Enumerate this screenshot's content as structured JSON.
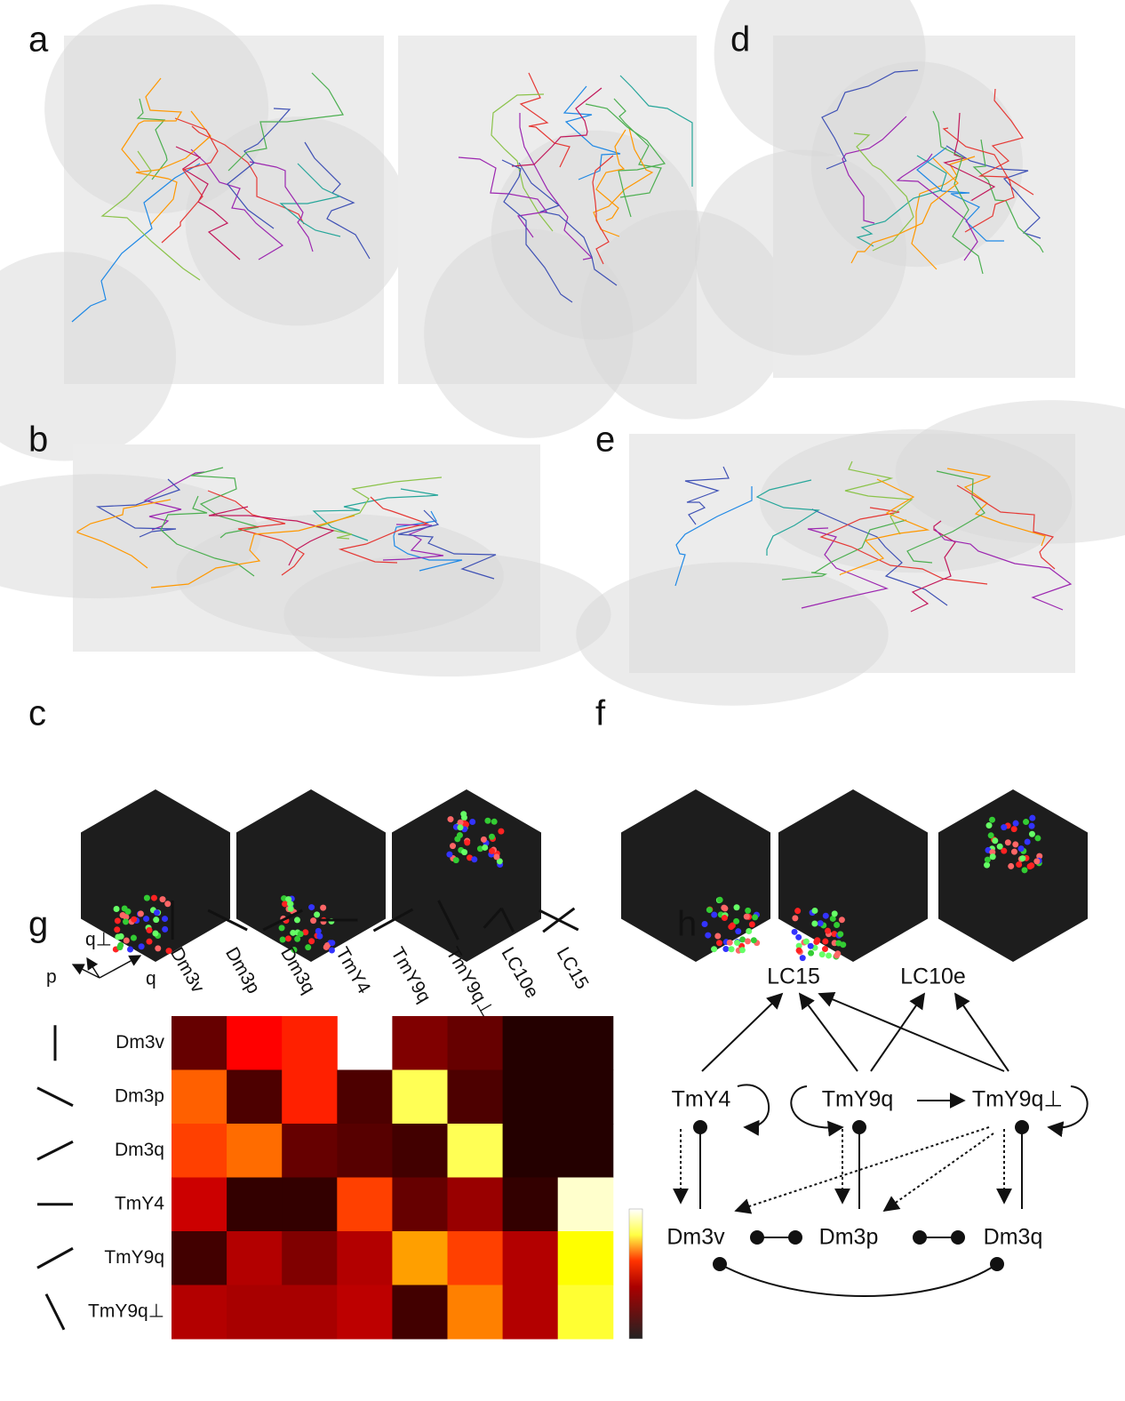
{
  "panel_labels": [
    "a",
    "b",
    "c",
    "d",
    "e",
    "f",
    "g",
    "h"
  ],
  "heatmap": {
    "axis_labels": {
      "p": "p",
      "q": "q",
      "q_perp": "q⊥"
    },
    "columns": [
      "Dm3v",
      "Dm3p",
      "Dm3q",
      "TmY4",
      "TmY9q",
      "TmY9q⊥",
      "LC10e",
      "LC15"
    ],
    "rows": [
      "Dm3v",
      "Dm3p",
      "Dm3q",
      "TmY4",
      "TmY9q",
      "TmY9q⊥"
    ],
    "values": [
      [
        0.15,
        0.45,
        0.5,
        null,
        0.2,
        0.15,
        0.02,
        0.02
      ],
      [
        0.6,
        0.1,
        0.5,
        0.1,
        0.9,
        0.1,
        0.02,
        0.02
      ],
      [
        0.55,
        0.62,
        0.15,
        0.12,
        0.08,
        0.9,
        0.02,
        0.02
      ],
      [
        0.35,
        0.05,
        0.05,
        0.55,
        0.15,
        0.25,
        0.05,
        0.97
      ],
      [
        0.08,
        0.3,
        0.2,
        0.3,
        0.7,
        0.55,
        0.3,
        0.85
      ],
      [
        0.3,
        0.28,
        0.28,
        0.32,
        0.08,
        0.65,
        0.3,
        0.88
      ]
    ]
  },
  "diagram": {
    "nodes": [
      "LC15",
      "LC10e",
      "TmY4",
      "TmY9q",
      "TmY9q⊥",
      "Dm3v",
      "Dm3p",
      "Dm3q"
    ]
  }
}
